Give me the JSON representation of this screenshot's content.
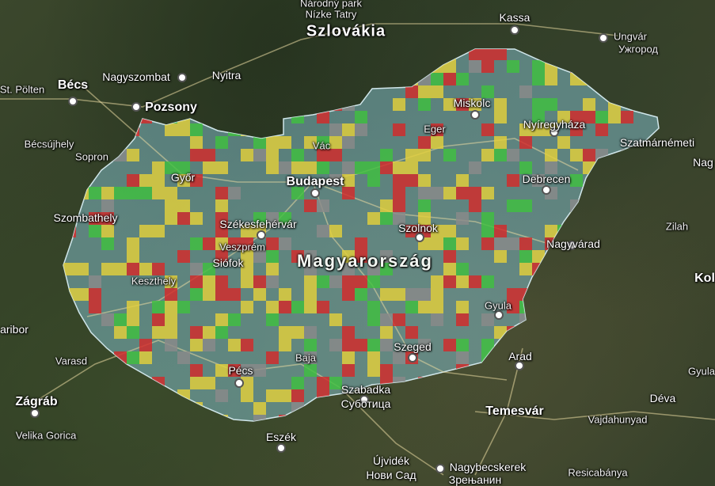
{
  "map": {
    "country_label": "Magyarország",
    "labels": [
      {
        "id": "slovakia",
        "text": "Szlovákia",
        "cls": "country"
      },
      {
        "id": "nizke-tatry-park",
        "text": "Národný park",
        "cls": "small"
      },
      {
        "id": "nizke-tatry",
        "text": "Nízke Tatry",
        "cls": "small"
      },
      {
        "id": "kassa",
        "text": "Kassa",
        "cls": "city"
      },
      {
        "id": "ungvar",
        "text": "Ungvár",
        "cls": "small"
      },
      {
        "id": "uzhorod",
        "text": "Ужгород",
        "cls": "small"
      },
      {
        "id": "st-polten",
        "text": "St. Pölten",
        "cls": "small"
      },
      {
        "id": "becs",
        "text": "Bécs",
        "cls": "city-big"
      },
      {
        "id": "nagyszombat",
        "text": "Nagyszombat",
        "cls": "city"
      },
      {
        "id": "nyitra",
        "text": "Nyitra",
        "cls": "city"
      },
      {
        "id": "pozsony",
        "text": "Pozsony",
        "cls": "city-big"
      },
      {
        "id": "miskolc",
        "text": "Miskolc",
        "cls": "city"
      },
      {
        "id": "nyiregyhaza",
        "text": "Nyíregyháza",
        "cls": "city"
      },
      {
        "id": "eger",
        "text": "Eger",
        "cls": "small"
      },
      {
        "id": "vac",
        "text": "Vác",
        "cls": "small"
      },
      {
        "id": "becsujhely",
        "text": "Bécsújhely",
        "cls": "small"
      },
      {
        "id": "szatmarnemeti",
        "text": "Szatmárnémeti",
        "cls": "city"
      },
      {
        "id": "nag",
        "text": "Nag",
        "cls": "city"
      },
      {
        "id": "sopron",
        "text": "Sopron",
        "cls": "small"
      },
      {
        "id": "gyor",
        "text": "Győr",
        "cls": "city"
      },
      {
        "id": "budapest",
        "text": "Budapest",
        "cls": "city-big"
      },
      {
        "id": "debrecen",
        "text": "Debrecen",
        "cls": "city"
      },
      {
        "id": "szombathely",
        "text": "Szombathely",
        "cls": "city"
      },
      {
        "id": "szekesfehervar",
        "text": "Székesfehérvár",
        "cls": "city"
      },
      {
        "id": "szolnok",
        "text": "Szolnok",
        "cls": "city"
      },
      {
        "id": "zilah",
        "text": "Zilah",
        "cls": "small"
      },
      {
        "id": "veszprem",
        "text": "Veszprém",
        "cls": "small"
      },
      {
        "id": "nagyvarad",
        "text": "Nagyvárad",
        "cls": "city"
      },
      {
        "id": "siofok",
        "text": "Siófok",
        "cls": "city"
      },
      {
        "id": "kol",
        "text": "Kol",
        "cls": "city-big"
      },
      {
        "id": "keszthely",
        "text": "Keszthely",
        "cls": "small"
      },
      {
        "id": "gyula",
        "text": "Gyula",
        "cls": "small"
      },
      {
        "id": "maribor",
        "text": "aribor",
        "cls": "city"
      },
      {
        "id": "varasd",
        "text": "Varasd",
        "cls": "small"
      },
      {
        "id": "szeged",
        "text": "Szeged",
        "cls": "city"
      },
      {
        "id": "arad",
        "text": "Arad",
        "cls": "city"
      },
      {
        "id": "baja",
        "text": "Baja",
        "cls": "small"
      },
      {
        "id": "pecs",
        "text": "Pécs",
        "cls": "city"
      },
      {
        "id": "gyula-ro",
        "text": "Gyula",
        "cls": "small"
      },
      {
        "id": "zagrab",
        "text": "Zágráb",
        "cls": "city-big"
      },
      {
        "id": "szabadka",
        "text": "Szabadka",
        "cls": "city"
      },
      {
        "id": "subotica",
        "text": "Суботица",
        "cls": "city"
      },
      {
        "id": "deva",
        "text": "Déva",
        "cls": "city"
      },
      {
        "id": "velika-gorica",
        "text": "Velika Gorica",
        "cls": "small"
      },
      {
        "id": "temesvar",
        "text": "Temesvár",
        "cls": "city-big"
      },
      {
        "id": "vajdahunyad",
        "text": "Vajdahunyad",
        "cls": "small"
      },
      {
        "id": "eszek",
        "text": "Eszék",
        "cls": "city"
      },
      {
        "id": "ujvidek",
        "text": "Újvidék",
        "cls": "city"
      },
      {
        "id": "novi-sad",
        "text": "Нови Сад",
        "cls": "city"
      },
      {
        "id": "nagybecskerek",
        "text": "Nagybecskerek",
        "cls": "city"
      },
      {
        "id": "zrenjanin",
        "text": "Зрењанин",
        "cls": "city"
      },
      {
        "id": "resicabanya",
        "text": "Resicabánya",
        "cls": "small"
      }
    ],
    "colors": {
      "overlay": "#7fb9c4",
      "red": "#d42a2a",
      "yellow": "#e3d03a",
      "green": "#3fbf3f",
      "gray": "#8a8a8a"
    }
  }
}
